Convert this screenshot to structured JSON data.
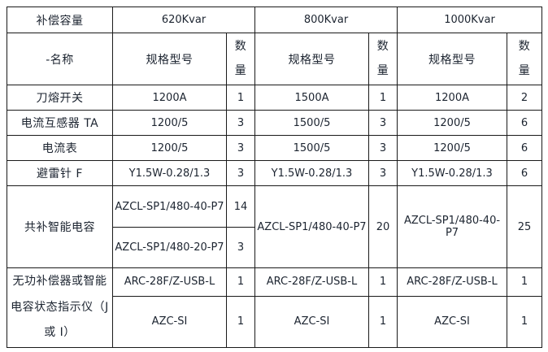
{
  "table": {
    "header": {
      "capacity_label": "补偿容量",
      "capacities": [
        "620Kvar",
        "800Kvar",
        "1000Kvar"
      ],
      "name_label": "-名称",
      "spec_label": "规格型号",
      "qty_label": "数\n量"
    },
    "body": {
      "row_knife": {
        "name": "刀熔开关",
        "spec620": "1200A",
        "qty620": "1",
        "spec800": "1500A",
        "qty800": "1",
        "spec1000": "1200A",
        "qty1000": "2"
      },
      "row_ct": {
        "name": "电流互感器 TA",
        "spec620": "1200/5",
        "qty620": "3",
        "spec800": "1500/5",
        "qty800": "3",
        "spec1000": "1200/5",
        "qty1000": "6"
      },
      "row_ammeter": {
        "name": "电流表",
        "spec620": "1200/5",
        "qty620": "3",
        "spec800": "1500/5",
        "qty800": "3",
        "spec1000": "1200/5",
        "qty1000": "6"
      },
      "row_arrester": {
        "name": "避雷针 F",
        "spec620": "Y1.5W-0.28/1.3",
        "qty620": "3",
        "spec800": "Y1.5W-0.28/1.3",
        "qty800": "3",
        "spec1000": "Y1.5W-0.28/1.3",
        "q1000": "6",
        "qty1000": "6"
      },
      "group_capacitor": {
        "name": "共补智能电容",
        "sub620": [
          {
            "spec": "AZCL-SP1/480-40-P7",
            "qty": "14"
          },
          {
            "spec": "AZCL-SP1/480-20-P7",
            "qty": "3"
          }
        ],
        "spec800": "AZCL-SP1/480-40-P7",
        "qty800": "20",
        "spec1000": "AZCL-SP1/480-40-P7",
        "qty1000": "25"
      },
      "group_indicator": {
        "name": "无功补偿器或智能电容状态指示仪（J 或 I）",
        "sub": [
          {
            "spec620": "ARC-28F/Z-USB-L",
            "qty620": "1",
            "spec800": "ARC-28F/Z-USB-L",
            "qty800": "1",
            "spec1000": "ARC-28F/Z-USB-L",
            "qty1000": "1"
          },
          {
            "spec620": "AZC-SI",
            "qty620": "1",
            "spec800": "AZC-SI",
            "qty800": "1",
            "spec1000": "AZC-SI",
            "qty1000": "1"
          }
        ]
      }
    }
  }
}
